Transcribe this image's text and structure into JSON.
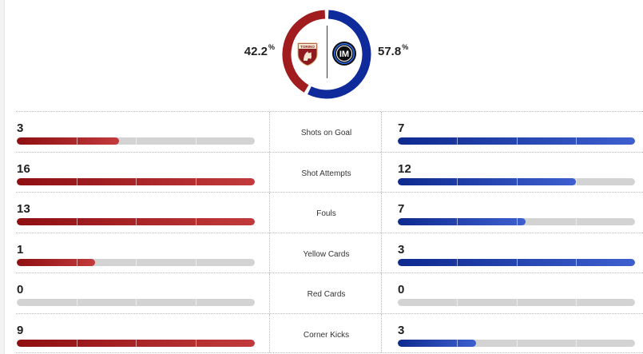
{
  "possession": {
    "home": {
      "value": "42.2",
      "unit": "%",
      "fraction": 0.422,
      "color": "#a01c1e",
      "logo": "torino-crest-icon",
      "logo_text": "TORINO"
    },
    "away": {
      "value": "57.8",
      "unit": "%",
      "fraction": 0.578,
      "color": "#0f2a9a",
      "logo": "inter-crest-icon",
      "logo_text": "IM"
    }
  },
  "colors": {
    "home_bar": "#a01c1e",
    "away_bar": "#1d3aa8",
    "track": "#d3d3d3"
  },
  "stats": [
    {
      "label": "Shots on Goal",
      "home": "3",
      "away": "7",
      "home_fraction": 0.43,
      "away_fraction": 1.0
    },
    {
      "label": "Shot Attempts",
      "home": "16",
      "away": "12",
      "home_fraction": 1.0,
      "away_fraction": 0.75
    },
    {
      "label": "Fouls",
      "home": "13",
      "away": "7",
      "home_fraction": 1.0,
      "away_fraction": 0.54
    },
    {
      "label": "Yellow Cards",
      "home": "1",
      "away": "3",
      "home_fraction": 0.33,
      "away_fraction": 1.0
    },
    {
      "label": "Red Cards",
      "home": "0",
      "away": "0",
      "home_fraction": 0.0,
      "away_fraction": 0.0
    },
    {
      "label": "Corner Kicks",
      "home": "9",
      "away": "3",
      "home_fraction": 1.0,
      "away_fraction": 0.33
    }
  ]
}
